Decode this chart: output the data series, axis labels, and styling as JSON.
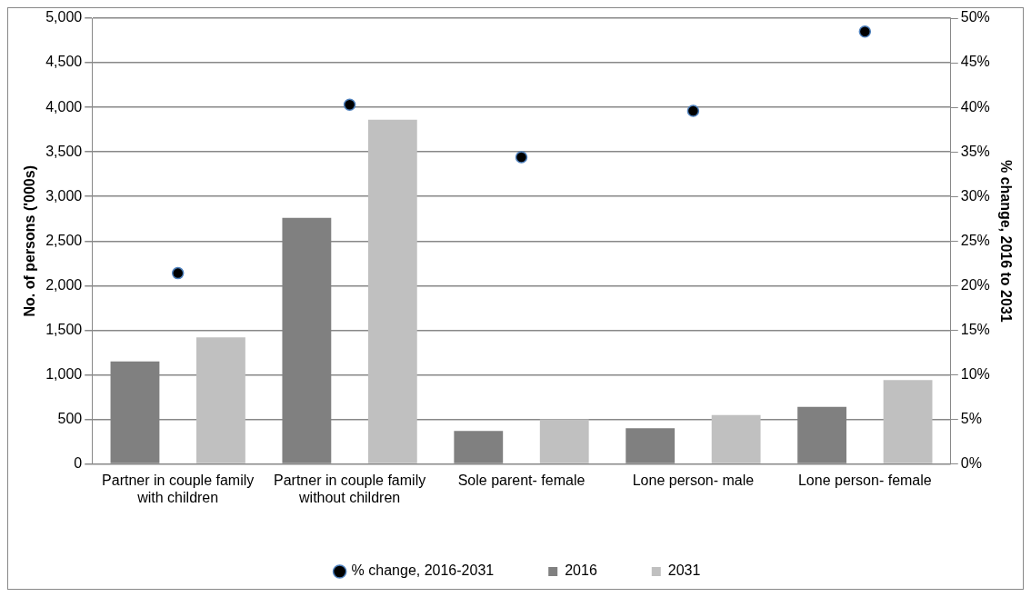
{
  "chart_data": {
    "type": "bar",
    "categories": [
      "Partner in couple family with children",
      "Partner in couple family without children",
      "Sole parent- female",
      "Lone person- male",
      "Lone person- female"
    ],
    "ylabel": "No. of persons ('000s)",
    "y2label": "% change, 2016 to 2031",
    "ylim": [
      0,
      5000
    ],
    "yticks": [
      {
        "value": 0,
        "label": "0"
      },
      {
        "value": 500,
        "label": "500"
      },
      {
        "value": 1000,
        "label": "1,000"
      },
      {
        "value": 1500,
        "label": "1,500"
      },
      {
        "value": 2000,
        "label": "2,000"
      },
      {
        "value": 2500,
        "label": "2,500"
      },
      {
        "value": 3000,
        "label": "3,000"
      },
      {
        "value": 3500,
        "label": "3,500"
      },
      {
        "value": 4000,
        "label": "4,000"
      },
      {
        "value": 4500,
        "label": "4,500"
      },
      {
        "value": 5000,
        "label": "5,000"
      }
    ],
    "y2lim": [
      0,
      50
    ],
    "y2ticks": [
      {
        "value": 0,
        "label": "0%"
      },
      {
        "value": 5,
        "label": "5%"
      },
      {
        "value": 10,
        "label": "10%"
      },
      {
        "value": 15,
        "label": "15%"
      },
      {
        "value": 20,
        "label": "20%"
      },
      {
        "value": 25,
        "label": "25%"
      },
      {
        "value": 30,
        "label": "30%"
      },
      {
        "value": 35,
        "label": "35%"
      },
      {
        "value": 40,
        "label": "40%"
      },
      {
        "value": 45,
        "label": "45%"
      },
      {
        "value": 50,
        "label": "50%"
      }
    ],
    "series": [
      {
        "name": "2016",
        "color": "#808080",
        "values": [
          1150,
          2760,
          370,
          400,
          640
        ]
      },
      {
        "name": "2031",
        "color": "#c0c0c0",
        "values": [
          1420,
          3860,
          500,
          550,
          940
        ]
      },
      {
        "name": "% change, 2016-2031",
        "type": "scatter",
        "axis": "y2",
        "color": "#000000",
        "values": [
          21.4,
          40.3,
          34.4,
          39.6,
          48.5
        ]
      }
    ],
    "grid": "y",
    "legend": "bottom",
    "marker": "circle"
  }
}
